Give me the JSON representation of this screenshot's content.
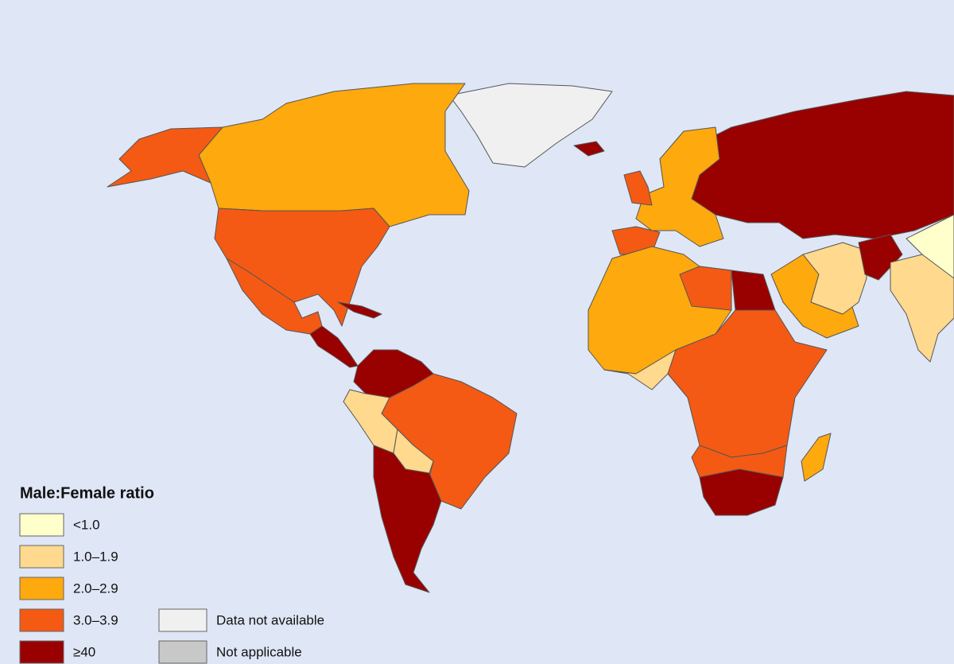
{
  "legend": {
    "title": "Male:Female ratio",
    "items": [
      {
        "label": "<1.0",
        "color": "#ffffcc"
      },
      {
        "label": "1.0–1.9",
        "color": "#fed98e"
      },
      {
        "label": "2.0–2.9",
        "color": "#fea90d"
      },
      {
        "label": "3.0–3.9",
        "color": "#f45a14"
      },
      {
        "label": "≥40",
        "color": "#990000"
      },
      {
        "label": "Data not available",
        "color": "#f0f0f0"
      },
      {
        "label": "Not applicable",
        "color": "#c8c8c8"
      }
    ]
  }
}
